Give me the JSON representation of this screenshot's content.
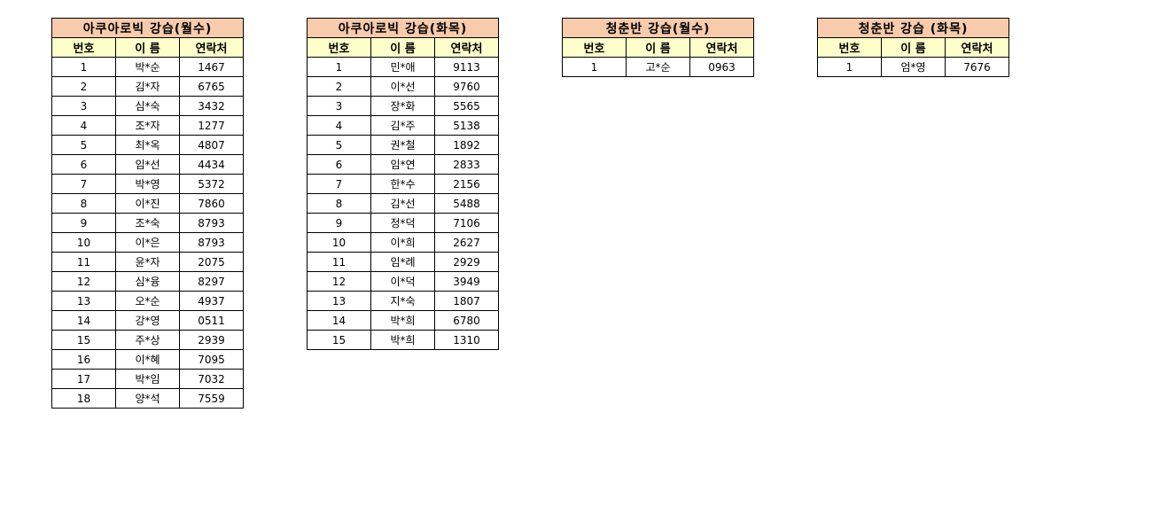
{
  "columns": [
    "번호",
    "이 름",
    "연락처"
  ],
  "tables": [
    {
      "title": "아쿠아로빅 강습(월수)",
      "rows": [
        [
          "1",
          "박*순",
          "1467"
        ],
        [
          "2",
          "김*자",
          "6765"
        ],
        [
          "3",
          "심*숙",
          "3432"
        ],
        [
          "4",
          "조*자",
          "1277"
        ],
        [
          "5",
          "최*옥",
          "4807"
        ],
        [
          "6",
          "임*선",
          "4434"
        ],
        [
          "7",
          "박*영",
          "5372"
        ],
        [
          "8",
          "이*진",
          "7860"
        ],
        [
          "9",
          "조*숙",
          "8793"
        ],
        [
          "10",
          "이*은",
          "8793"
        ],
        [
          "11",
          "윤*자",
          "2075"
        ],
        [
          "12",
          "심*융",
          "8297"
        ],
        [
          "13",
          "오*순",
          "4937"
        ],
        [
          "14",
          "강*영",
          "0511"
        ],
        [
          "15",
          "주*상",
          "2939"
        ],
        [
          "16",
          "이*혜",
          "7095"
        ],
        [
          "17",
          "박*임",
          "7032"
        ],
        [
          "18",
          "양*석",
          "7559"
        ]
      ]
    },
    {
      "title": "아쿠아로빅 강습(화목)",
      "rows": [
        [
          "1",
          "민*애",
          "9113"
        ],
        [
          "2",
          "이*선",
          "9760"
        ],
        [
          "3",
          "장*화",
          "5565"
        ],
        [
          "4",
          "김*주",
          "5138"
        ],
        [
          "5",
          "권*철",
          "1892"
        ],
        [
          "6",
          "임*연",
          "2833"
        ],
        [
          "7",
          "한*수",
          "2156"
        ],
        [
          "8",
          "김*선",
          "5488"
        ],
        [
          "9",
          "정*덕",
          "7106"
        ],
        [
          "10",
          "이*희",
          "2627"
        ],
        [
          "11",
          "임*례",
          "2929"
        ],
        [
          "12",
          "이*덕",
          "3949"
        ],
        [
          "13",
          "지*숙",
          "1807"
        ],
        [
          "14",
          "박*희",
          "6780"
        ],
        [
          "15",
          "박*희",
          "1310"
        ]
      ]
    },
    {
      "title": "청춘반 강습(월수)",
      "rows": [
        [
          "1",
          "고*순",
          "0963"
        ]
      ]
    },
    {
      "title": "청춘반 강습 (화목)",
      "rows": [
        [
          "1",
          "엄*영",
          "7676"
        ]
      ]
    }
  ],
  "colors": {
    "title_bg": "#f8cbad",
    "header_bg": "#ffffcc",
    "border": "#000000"
  }
}
